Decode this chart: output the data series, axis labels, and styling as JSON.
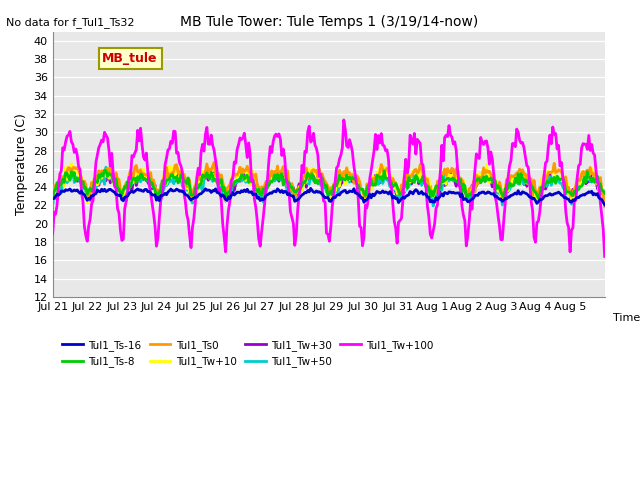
{
  "title": "MB Tule Tower: Tule Temps 1 (3/19/14-now)",
  "no_data_label": "No data for f_Tul1_Ts32",
  "xlabel": "Time",
  "ylabel": "Temperature (C)",
  "ylim": [
    12,
    41
  ],
  "yticks": [
    12,
    14,
    16,
    18,
    20,
    22,
    24,
    26,
    28,
    30,
    32,
    34,
    36,
    38,
    40
  ],
  "bg_color": "#e8e8e8",
  "fig_bg_color": "#ffffff",
  "x_tick_labels": [
    "Jul 21",
    "Jul 22",
    "Jul 23",
    "Jul 24",
    "Jul 25",
    "Jul 26",
    "Jul 27",
    "Jul 28",
    "Jul 29",
    "Jul 30",
    "Jul 31",
    "Aug 1",
    "Aug 2",
    "Aug 3",
    "Aug 4",
    "Aug 5"
  ],
  "legend_entries": [
    {
      "label": "Tul1_Ts-16",
      "color": "#0000cc",
      "lw": 2
    },
    {
      "label": "Tul1_Ts-8",
      "color": "#00cc00",
      "lw": 2
    },
    {
      "label": "Tul1_Ts0",
      "color": "#ff9900",
      "lw": 2
    },
    {
      "label": "Tul1_Tw+10",
      "color": "#ffff00",
      "lw": 2
    },
    {
      "label": "Tul1_Tw+30",
      "color": "#9900cc",
      "lw": 2
    },
    {
      "label": "Tul1_Tw+50",
      "color": "#00cccc",
      "lw": 2
    },
    {
      "label": "Tul1_Tw+100",
      "color": "#ff00ff",
      "lw": 2
    }
  ],
  "mb_tule_box": {
    "text": "MB_tule",
    "facecolor": "#ffffcc",
    "edgecolor": "#999900",
    "textcolor": "#cc0000",
    "fontsize": 9
  }
}
